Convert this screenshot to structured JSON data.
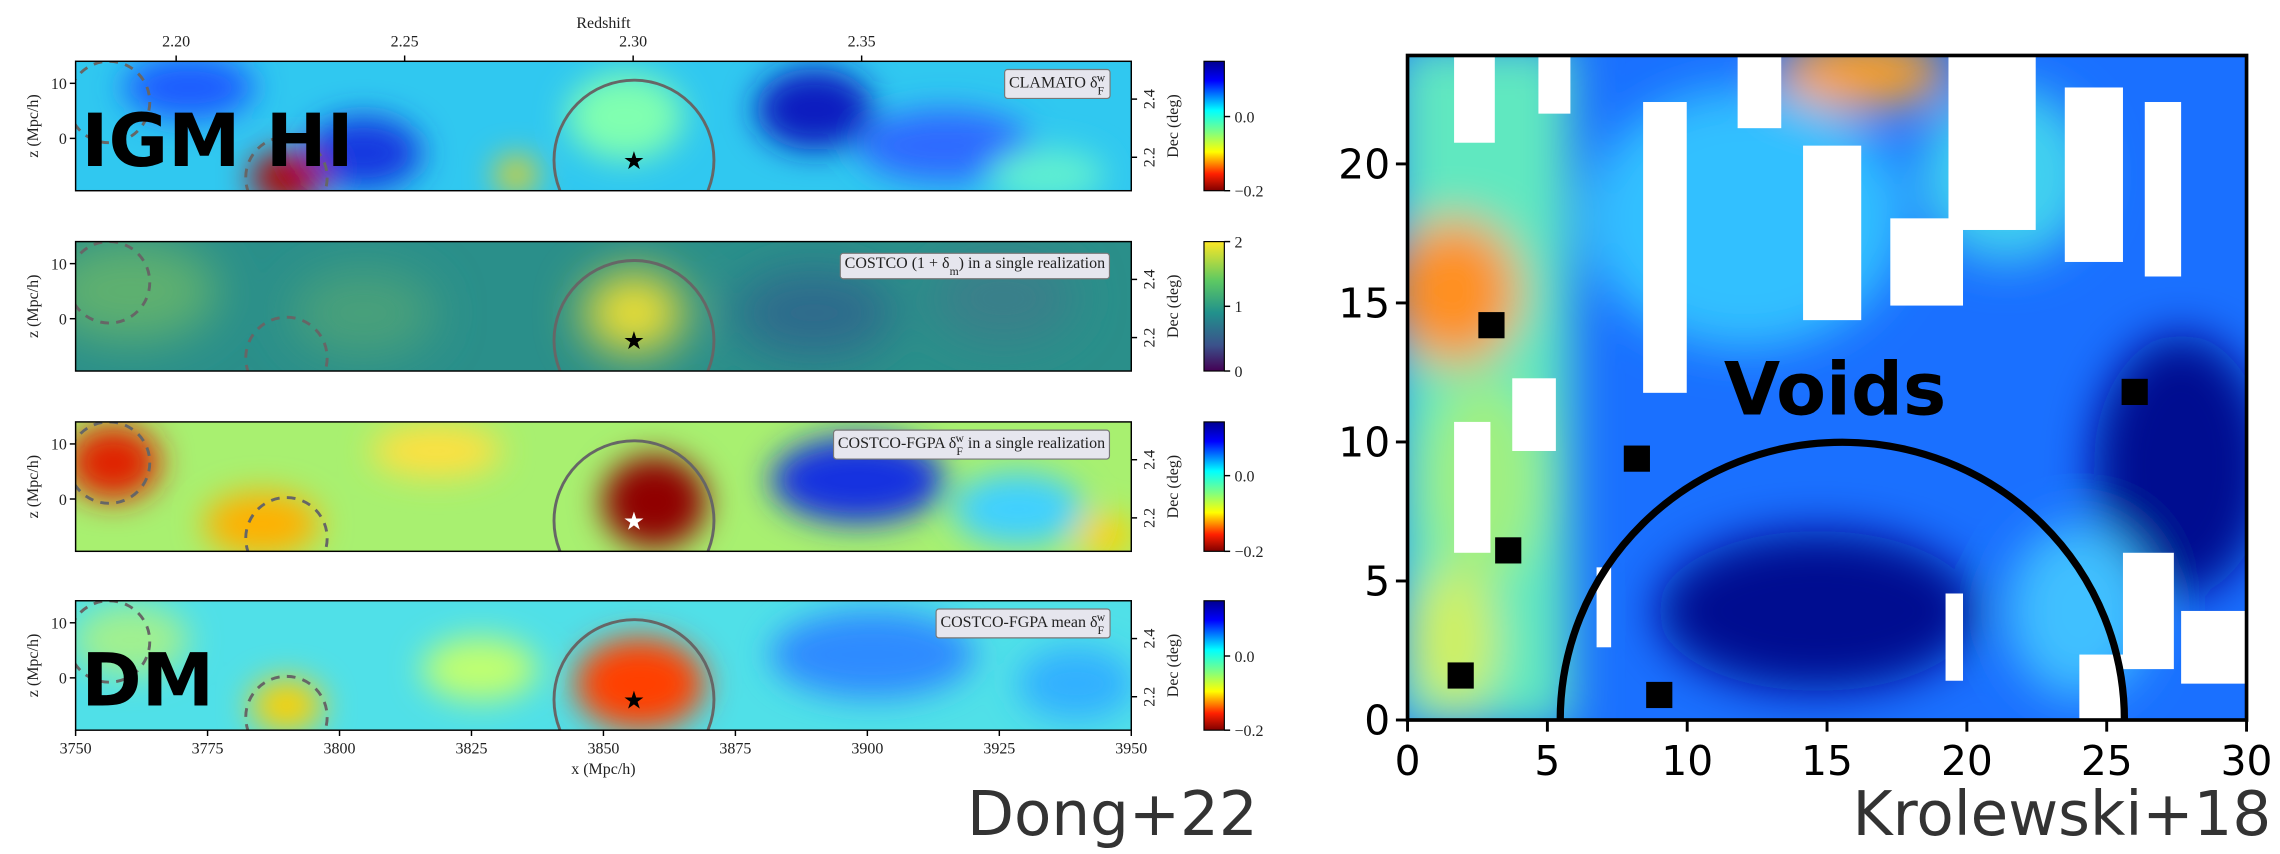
{
  "chart_data": [
    {
      "type": "heatmap",
      "title": [
        {
          "text": "CLAMATO δ"
        },
        {
          "text": "F",
          "script": "sub"
        },
        {
          "text": "w",
          "script": "sup"
        }
      ],
      "annotation": "IGM HI",
      "x2label": "Redshift",
      "x2lim": [
        2.178,
        2.409
      ],
      "x2ticks": [
        {
          "value": 2.2,
          "label": "2.20"
        },
        {
          "value": 2.25,
          "label": "2.25"
        },
        {
          "value": 2.3,
          "label": "2.30"
        },
        {
          "value": 2.35,
          "label": "2.35"
        }
      ],
      "ylabel": "z (Mpc/h)",
      "ylim": [
        -9.5,
        14
      ],
      "yticks": [
        0,
        10
      ],
      "y2label": "Dec (deg)",
      "y2lim": [
        2.085,
        2.53
      ],
      "y2ticks": [
        2.2,
        2.4
      ],
      "cmap": "jet_r",
      "clim": [
        -0.2,
        0.149
      ],
      "cticks": [
        {
          "value": 0,
          "label": "0.0"
        },
        {
          "value": -0.2,
          "label": "−0.2"
        }
      ]
    },
    {
      "type": "heatmap",
      "title": [
        {
          "text": "COSTCO (1 + δ"
        },
        {
          "text": "m",
          "script": "sub"
        },
        {
          "text": ") in a single realization"
        }
      ],
      "ylabel": "z (Mpc/h)",
      "ylim": [
        -9.5,
        14
      ],
      "yticks": [
        0,
        10
      ],
      "y2label": "Dec (deg)",
      "y2lim": [
        2.085,
        2.53
      ],
      "y2ticks": [
        2.2,
        2.4
      ],
      "cmap": "viridis",
      "clim": [
        0,
        2
      ],
      "cticks": [
        2,
        1,
        0
      ]
    },
    {
      "type": "heatmap",
      "title": [
        {
          "text": "COSTCO-FGPA δ"
        },
        {
          "text": "F",
          "script": "sub"
        },
        {
          "text": "w",
          "script": "sup"
        },
        {
          "text": " in a single realization"
        }
      ],
      "ylabel": "z (Mpc/h)",
      "ylim": [
        -9.5,
        14
      ],
      "yticks": [
        0,
        10
      ],
      "y2label": "Dec (deg)",
      "y2lim": [
        2.085,
        2.53
      ],
      "y2ticks": [
        2.2,
        2.4
      ],
      "cmap": "jet_r",
      "clim": [
        -0.2,
        0.142
      ],
      "cticks": [
        {
          "value": 0,
          "label": "0.0"
        },
        {
          "value": -0.2,
          "label": "−0.2"
        }
      ]
    },
    {
      "type": "heatmap",
      "title": [
        {
          "text": "COSTCO-FGPA mean δ"
        },
        {
          "text": "F",
          "script": "sub"
        },
        {
          "text": "w",
          "script": "sup"
        }
      ],
      "annotation": "DM",
      "xlabel": "x (Mpc/h)",
      "xlim": [
        3750,
        3950
      ],
      "xticks": [
        3750,
        3775,
        3800,
        3825,
        3850,
        3875,
        3900,
        3925,
        3950
      ],
      "ylabel": "z (Mpc/h)",
      "ylim": [
        -9.5,
        14
      ],
      "yticks": [
        0,
        10
      ],
      "y2label": "Dec (deg)",
      "y2lim": [
        2.085,
        2.53
      ],
      "y2ticks": [
        2.2,
        2.4
      ],
      "cmap": "jet_r",
      "clim": [
        -0.2,
        0.149
      ],
      "cticks": [
        {
          "value": 0,
          "label": "0.0"
        },
        {
          "value": -0.2,
          "label": "−0.2"
        }
      ]
    },
    {
      "type": "heatmap",
      "annotation": "Voids",
      "xlim": [
        0,
        30
      ],
      "xticks": [
        0,
        5,
        10,
        15,
        20,
        25,
        30
      ],
      "ylim": [
        0,
        23.9
      ],
      "yticks": [
        0,
        5,
        10,
        15,
        20
      ],
      "points": {
        "x": [
          3,
          26,
          8.2,
          3.6,
          1.9,
          9
        ],
        "y": [
          14.2,
          11.8,
          9.4,
          6.1,
          1.6,
          0.9
        ]
      },
      "point_color": "#000000"
    }
  ],
  "credits": [
    "Dong+22",
    "Krolewski+18"
  ]
}
